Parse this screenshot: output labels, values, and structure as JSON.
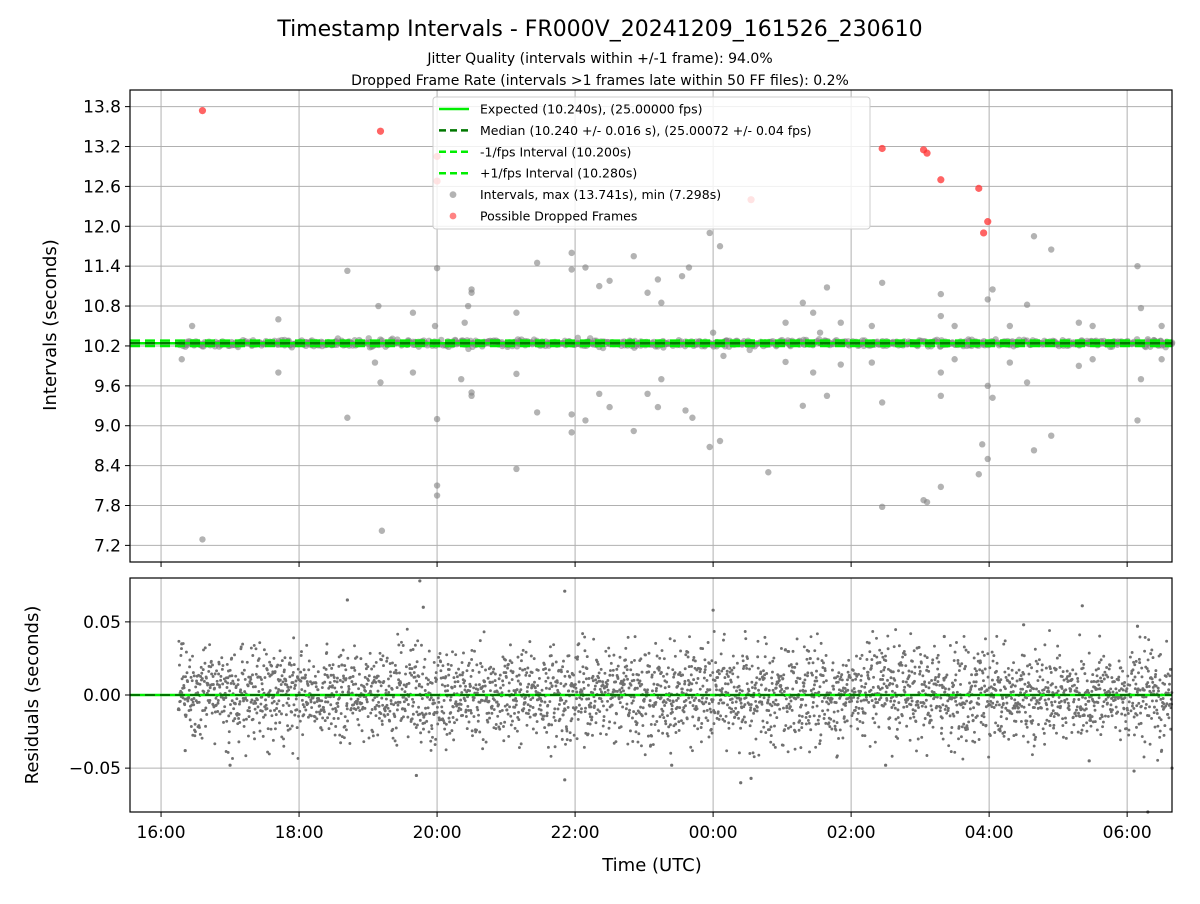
{
  "chart_data": {
    "title": "Timestamp Intervals - FR000V_20241209_161526_230610",
    "subtitle_lines": [
      "Jitter Quality (intervals within +/-1 frame): 94.0%",
      "Dropped Frame Rate (intervals >1 frames late within 50 FF files): 0.2%"
    ],
    "xlabel": "Time (UTC)",
    "x_ticks": [
      "16:00",
      "18:00",
      "20:00",
      "22:00",
      "00:00",
      "02:00",
      "04:00",
      "06:00"
    ],
    "x_range_hours": [
      15.55,
      30.65
    ],
    "grid": true,
    "colors": {
      "expected": "#00ee00",
      "median": "#007700",
      "bounds": "#00ee00",
      "intervals": "#808080",
      "dropped": "#ff3030",
      "residuals": "#707070"
    },
    "panels": [
      {
        "type": "scatter",
        "ylabel": "Intervals (seconds)",
        "ylim": [
          6.95,
          14.05
        ],
        "y_ticks": [
          "7.2",
          "7.8",
          "8.4",
          "9.0",
          "9.6",
          "10.2",
          "10.8",
          "11.4",
          "12.0",
          "12.6",
          "13.2",
          "13.8"
        ],
        "lines": {
          "expected": 10.24,
          "median": 10.24,
          "lower": 10.2,
          "upper": 10.28
        },
        "legend_position": "upper center",
        "legend": [
          {
            "label": "Expected (10.240s), (25.00000 fps)",
            "style": "solid",
            "color": "#00ee00"
          },
          {
            "label": "Median (10.240 +/- 0.016 s), (25.00072 +/- 0.04 fps)",
            "style": "dashed",
            "color": "#007700"
          },
          {
            "label": "-1/fps Interval (10.200s)",
            "style": "dashed",
            "color": "#00ee00"
          },
          {
            "label": "+1/fps Interval (10.280s)",
            "style": "dashed",
            "color": "#00ee00"
          },
          {
            "label": "Intervals, max (13.741s), min (7.298s)",
            "style": "marker",
            "color": "#808080"
          },
          {
            "label": "Possible Dropped Frames",
            "style": "marker",
            "color": "#ff3030"
          }
        ],
        "dropped_points": [
          [
            16.6,
            13.74
          ],
          [
            19.18,
            13.43
          ],
          [
            20.0,
            13.05
          ],
          [
            20.0,
            12.68
          ],
          [
            24.55,
            12.4
          ],
          [
            26.45,
            13.17
          ],
          [
            27.05,
            13.15
          ],
          [
            27.1,
            13.1
          ],
          [
            27.3,
            12.7
          ],
          [
            27.85,
            12.57
          ],
          [
            27.92,
            11.9
          ],
          [
            27.98,
            12.07
          ]
        ],
        "outlier_points": [
          [
            16.3,
            10.0
          ],
          [
            16.45,
            10.5
          ],
          [
            16.6,
            7.29
          ],
          [
            17.7,
            9.8
          ],
          [
            17.7,
            10.6
          ],
          [
            18.7,
            11.33
          ],
          [
            18.7,
            9.12
          ],
          [
            19.1,
            9.95
          ],
          [
            19.15,
            10.8
          ],
          [
            19.18,
            9.65
          ],
          [
            19.2,
            7.42
          ],
          [
            19.65,
            10.7
          ],
          [
            19.65,
            9.8
          ],
          [
            19.97,
            10.5
          ],
          [
            20.0,
            11.37
          ],
          [
            20.0,
            9.1
          ],
          [
            20.0,
            8.1
          ],
          [
            20.0,
            7.95
          ],
          [
            20.35,
            9.7
          ],
          [
            20.4,
            10.55
          ],
          [
            20.45,
            10.8
          ],
          [
            20.5,
            11.05
          ],
          [
            20.5,
            11.0
          ],
          [
            20.5,
            9.5
          ],
          [
            20.5,
            9.45
          ],
          [
            21.15,
            8.35
          ],
          [
            21.15,
            9.78
          ],
          [
            21.15,
            10.7
          ],
          [
            21.45,
            11.45
          ],
          [
            21.45,
            9.2
          ],
          [
            21.95,
            11.6
          ],
          [
            21.95,
            11.35
          ],
          [
            21.95,
            9.17
          ],
          [
            21.95,
            8.9
          ],
          [
            22.15,
            11.38
          ],
          [
            22.15,
            9.08
          ],
          [
            22.35,
            11.1
          ],
          [
            22.5,
            11.18
          ],
          [
            22.5,
            9.28
          ],
          [
            22.35,
            9.48
          ],
          [
            22.85,
            11.55
          ],
          [
            22.85,
            8.92
          ],
          [
            23.05,
            11.0
          ],
          [
            23.05,
            9.48
          ],
          [
            23.2,
            11.2
          ],
          [
            23.2,
            9.28
          ],
          [
            23.25,
            10.85
          ],
          [
            23.25,
            9.7
          ],
          [
            23.55,
            11.25
          ],
          [
            23.6,
            9.23
          ],
          [
            23.65,
            11.38
          ],
          [
            23.7,
            9.12
          ],
          [
            23.95,
            11.9
          ],
          [
            23.95,
            8.68
          ],
          [
            24.1,
            11.7
          ],
          [
            24.1,
            8.77
          ],
          [
            24.0,
            10.4
          ],
          [
            24.15,
            10.05
          ],
          [
            24.8,
            8.3
          ],
          [
            25.05,
            10.55
          ],
          [
            25.05,
            9.96
          ],
          [
            25.3,
            10.85
          ],
          [
            25.3,
            9.3
          ],
          [
            25.45,
            10.7
          ],
          [
            25.45,
            9.8
          ],
          [
            25.55,
            10.4
          ],
          [
            25.65,
            11.08
          ],
          [
            25.65,
            9.45
          ],
          [
            25.85,
            10.55
          ],
          [
            25.85,
            9.92
          ],
          [
            26.45,
            11.15
          ],
          [
            26.45,
            9.35
          ],
          [
            26.45,
            7.78
          ],
          [
            26.3,
            10.5
          ],
          [
            26.3,
            9.95
          ],
          [
            27.05,
            7.88
          ],
          [
            27.1,
            7.85
          ],
          [
            27.3,
            8.08
          ],
          [
            27.3,
            10.98
          ],
          [
            27.3,
            9.45
          ],
          [
            27.3,
            10.65
          ],
          [
            27.3,
            9.8
          ],
          [
            27.5,
            10.5
          ],
          [
            27.5,
            10.0
          ],
          [
            27.85,
            8.27
          ],
          [
            27.9,
            8.72
          ],
          [
            27.98,
            8.5
          ],
          [
            27.98,
            10.9
          ],
          [
            27.98,
            9.6
          ],
          [
            28.05,
            11.05
          ],
          [
            28.05,
            9.42
          ],
          [
            28.3,
            10.5
          ],
          [
            28.3,
            9.95
          ],
          [
            28.55,
            10.82
          ],
          [
            28.55,
            9.65
          ],
          [
            28.65,
            11.85
          ],
          [
            28.65,
            8.63
          ],
          [
            28.9,
            11.65
          ],
          [
            28.9,
            8.85
          ],
          [
            29.3,
            10.55
          ],
          [
            29.3,
            9.9
          ],
          [
            29.5,
            10.5
          ],
          [
            29.5,
            10.0
          ],
          [
            30.15,
            11.4
          ],
          [
            30.15,
            9.08
          ],
          [
            30.2,
            10.77
          ],
          [
            30.2,
            9.7
          ],
          [
            30.3,
            10.3
          ],
          [
            30.5,
            10.5
          ],
          [
            30.5,
            10.0
          ]
        ]
      },
      {
        "type": "scatter",
        "ylabel": "Residuals (seconds)",
        "ylim": [
          -0.08,
          0.08
        ],
        "y_ticks": [
          "−0.05",
          "0.00",
          "0.05"
        ],
        "y_tick_values": [
          -0.05,
          0.0,
          0.05
        ],
        "zero_line": 0.0,
        "residual_spread": 0.016,
        "outlier_points": [
          [
            16.3,
            0.035
          ],
          [
            16.35,
            -0.038
          ],
          [
            17.0,
            -0.048
          ],
          [
            18.7,
            0.065
          ],
          [
            19.7,
            -0.055
          ],
          [
            19.75,
            0.078
          ],
          [
            19.8,
            0.06
          ],
          [
            21.85,
            0.071
          ],
          [
            21.85,
            -0.058
          ],
          [
            23.4,
            -0.048
          ],
          [
            24.0,
            0.058
          ],
          [
            24.4,
            -0.06
          ],
          [
            24.55,
            -0.057
          ],
          [
            26.5,
            -0.048
          ],
          [
            27.35,
            0.04
          ],
          [
            28.5,
            0.048
          ],
          [
            29.35,
            0.061
          ],
          [
            29.45,
            -0.045
          ],
          [
            30.15,
            0.047
          ],
          [
            30.1,
            -0.052
          ],
          [
            30.3,
            -0.08
          ],
          [
            30.65,
            -0.05
          ]
        ]
      }
    ]
  }
}
